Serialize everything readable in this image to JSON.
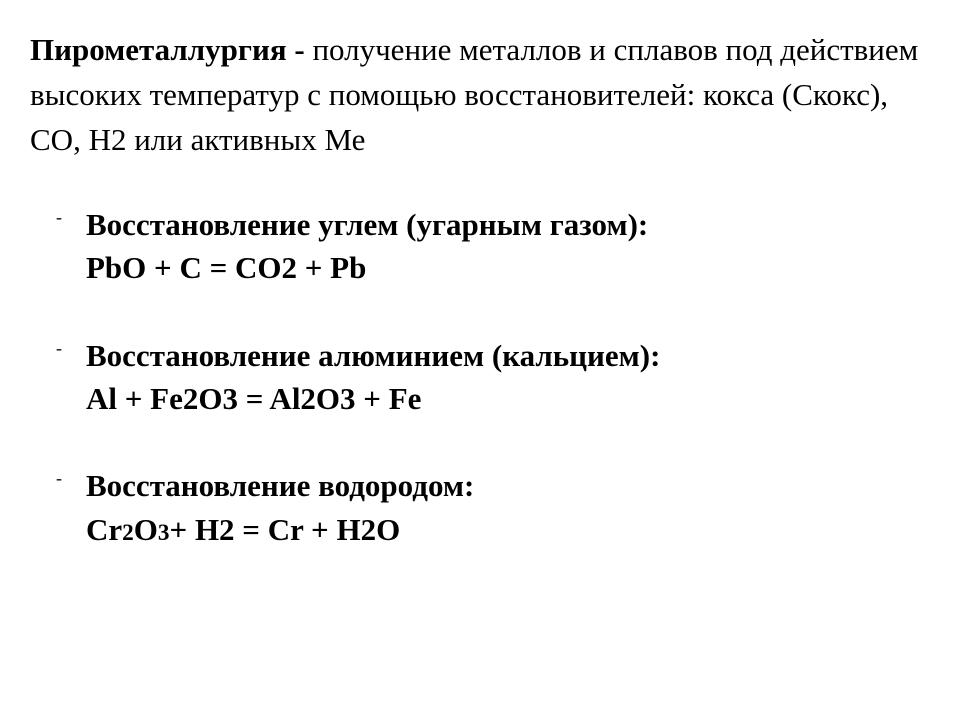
{
  "intro": {
    "bold_term": "Пирометаллургия - ",
    "text": "получение металлов и сплавов под действием высоких температур с помощью восстановителей: кокса (Скокс), CO, H2 или активных Ме"
  },
  "items": [
    {
      "title": " Восстановление углем (угарным газом):",
      "equation": "PbO + C = CO2 + Pb"
    },
    {
      "title": " Восстановление алюминием (кальцием):",
      "equation": "Al + Fe2O3 = Al2O3 + Fe"
    },
    {
      "title": " Восстановление водородом:",
      "equation_html": "Cr2O3+ H2 = Cr + H2O",
      "equation": "Cr2O3+ H2 = Cr + H2O"
    }
  ],
  "styling": {
    "background_color": "#ffffff",
    "text_color": "#000000",
    "font_family": "Times New Roman",
    "intro_fontsize": 31,
    "item_fontsize": 31,
    "bold_weight": "bold"
  }
}
